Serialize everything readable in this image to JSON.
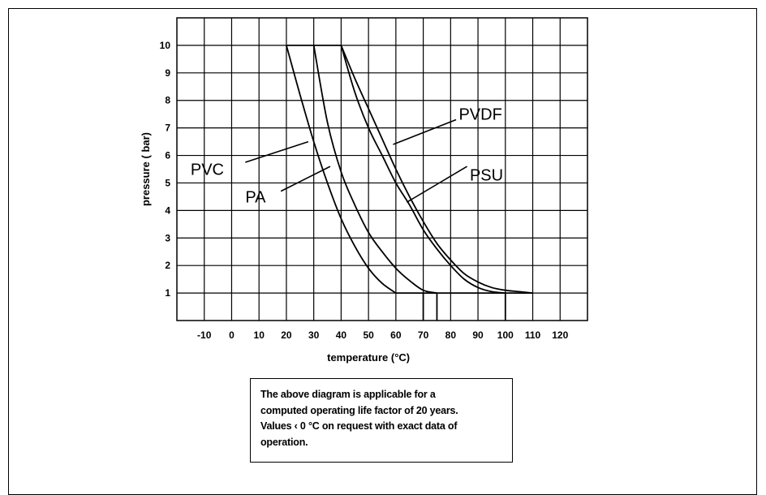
{
  "chart_data": {
    "type": "line",
    "xlabel": "temperature (°C)",
    "ylabel": "pressure ( bar)",
    "xlim": [
      -20,
      130
    ],
    "ylim": [
      0,
      11
    ],
    "x_ticks": [
      -10,
      0,
      10,
      20,
      30,
      40,
      50,
      60,
      70,
      80,
      90,
      100,
      110,
      120
    ],
    "y_ticks": [
      1,
      2,
      3,
      4,
      5,
      6,
      7,
      8,
      9,
      10
    ],
    "grid": true,
    "series": [
      {
        "name": "PVC",
        "x": [
          20,
          25,
          30,
          35,
          40,
          45,
          50,
          55,
          60
        ],
        "y": [
          10,
          8.2,
          6.5,
          5.0,
          3.7,
          2.7,
          1.9,
          1.35,
          1
        ]
      },
      {
        "name": "PA",
        "x": [
          30,
          35,
          40,
          45,
          50,
          55,
          60,
          65,
          70,
          75
        ],
        "y": [
          10,
          7.2,
          5.4,
          4.2,
          3.2,
          2.5,
          1.9,
          1.45,
          1.1,
          1
        ]
      },
      {
        "name": "PVDF",
        "x": [
          40,
          45,
          50,
          55,
          60,
          65,
          70,
          75,
          80,
          85,
          90,
          95,
          100,
          105,
          110
        ],
        "y": [
          10,
          8.8,
          7.7,
          6.6,
          5.5,
          4.5,
          3.6,
          2.8,
          2.2,
          1.7,
          1.4,
          1.2,
          1.1,
          1.05,
          1
        ]
      },
      {
        "name": "PSU",
        "x": [
          40,
          45,
          50,
          55,
          60,
          65,
          70,
          75,
          80,
          85,
          90,
          95,
          100
        ],
        "y": [
          10,
          8.3,
          7.0,
          6.0,
          5.0,
          4.2,
          3.3,
          2.6,
          2.0,
          1.5,
          1.2,
          1.05,
          1
        ]
      }
    ]
  },
  "note": {
    "line1": "The above diagram is applicable for a",
    "line2": "computed operating life factor of 20 years.",
    "line3": "Values ‹ 0 °C on request with exact data of",
    "line4": "operation."
  }
}
